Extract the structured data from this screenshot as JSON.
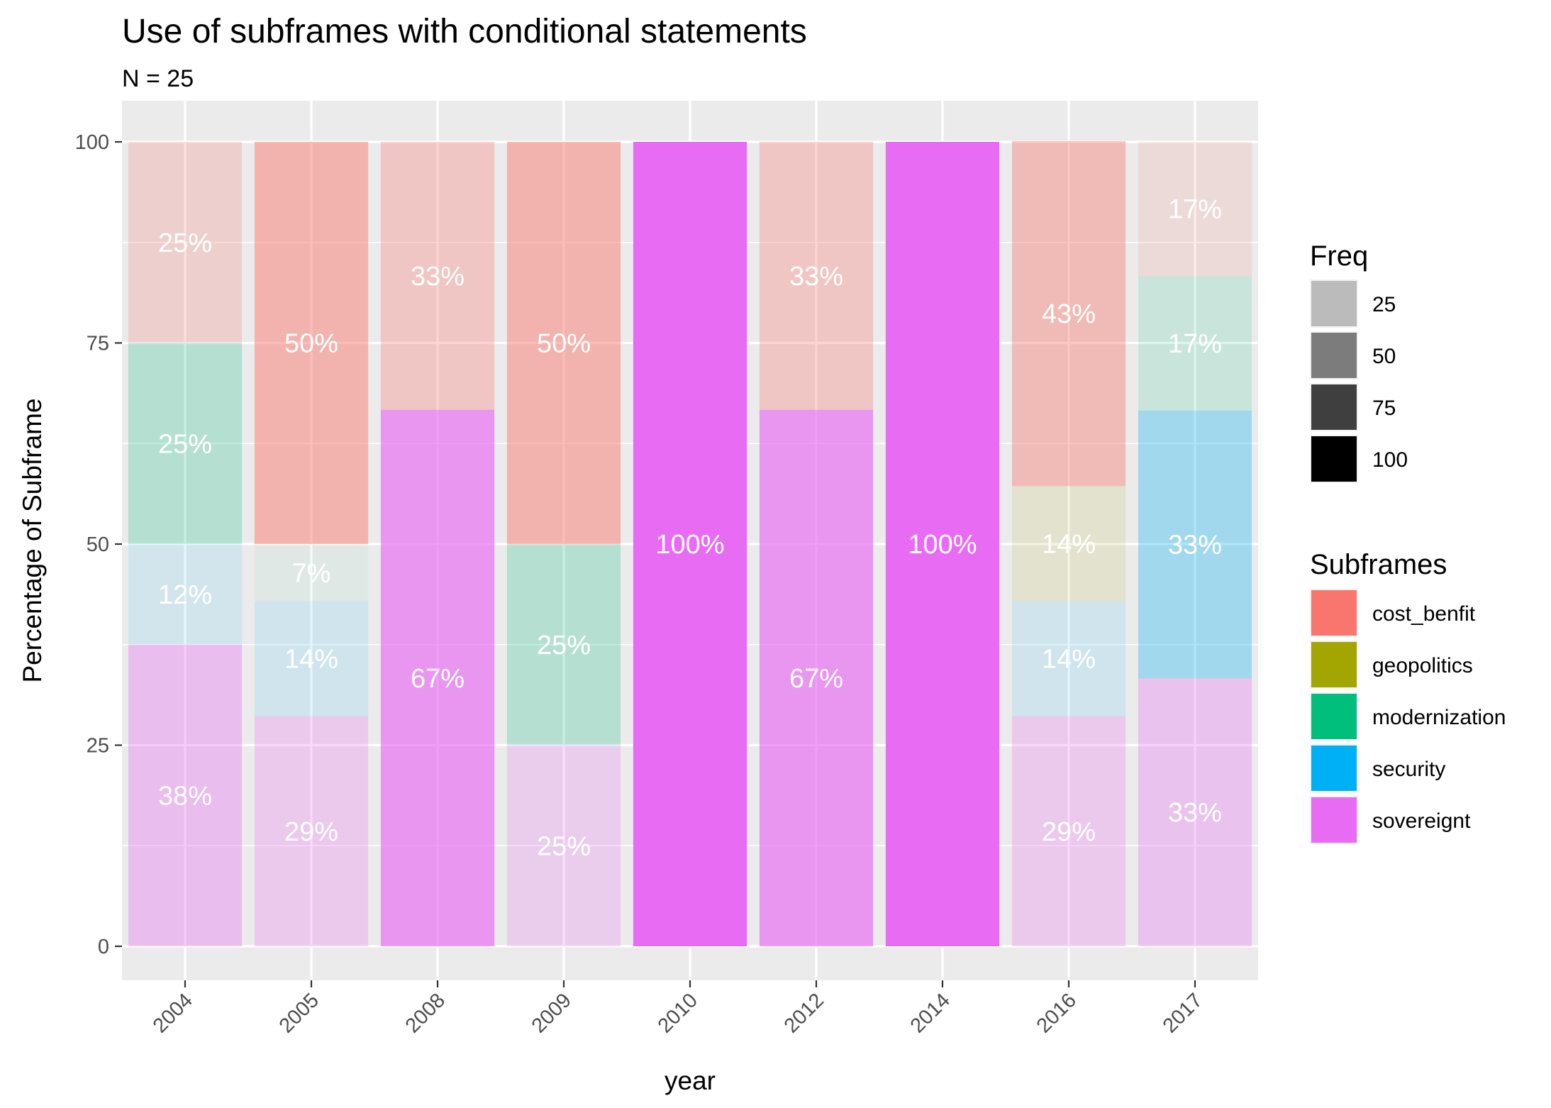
{
  "chart_data": {
    "type": "bar",
    "stacked": true,
    "title": "Use of subframes with conditional statements",
    "subtitle": "N = 25",
    "xlabel": "year",
    "ylabel": "Percentage of Subframe",
    "ylim": [
      0,
      100
    ],
    "yticks": [
      0,
      25,
      50,
      75,
      100
    ],
    "grid": true,
    "categories": [
      "2004",
      "2005",
      "2008",
      "2009",
      "2010",
      "2012",
      "2014",
      "2016",
      "2017"
    ],
    "series": [
      {
        "name": "sovereignt",
        "color": "#E76BF3",
        "values": [
          37.5,
          28.6,
          66.7,
          25,
          100,
          66.7,
          100,
          28.6,
          33.3
        ],
        "labels": [
          "38%",
          "29%",
          "67%",
          "25%",
          "100%",
          "67%",
          "100%",
          "29%",
          "33%"
        ],
        "freq": [
          37.5,
          28.6,
          66.7,
          25,
          100,
          66.7,
          100,
          28.6,
          33.3
        ]
      },
      {
        "name": "security",
        "color": "#00B0F6",
        "values": [
          12.5,
          14.3,
          0,
          0,
          0,
          0,
          0,
          14.3,
          33.3
        ],
        "labels": [
          "12%",
          "14%",
          "",
          "",
          "",
          "",
          "",
          "14%",
          "33%"
        ],
        "freq": [
          12.5,
          14.3,
          0,
          0,
          0,
          0,
          0,
          14.3,
          33.3
        ]
      },
      {
        "name": "geopolitics",
        "color": "#A3A500",
        "values": [
          0,
          0,
          0,
          0,
          0,
          0,
          0,
          14.3,
          0
        ],
        "labels": [
          "",
          "",
          "",
          "",
          "",
          "",
          "",
          "14%",
          ""
        ],
        "freq": [
          0,
          0,
          0,
          0,
          0,
          0,
          0,
          14.3,
          0
        ]
      },
      {
        "name": "modernization",
        "color": "#00BF7D",
        "values": [
          25,
          7.1,
          0,
          25,
          0,
          0,
          0,
          0,
          16.7
        ],
        "labels": [
          "25%",
          "7%",
          "",
          "25%",
          "",
          "",
          "",
          "",
          "17%"
        ],
        "freq": [
          25,
          7.1,
          0,
          25,
          0,
          0,
          0,
          0,
          16.7
        ]
      },
      {
        "name": "cost_benfit",
        "color": "#F8766D",
        "values": [
          25,
          50,
          33.3,
          50,
          0,
          33.3,
          0,
          42.9,
          16.7
        ],
        "labels": [
          "25%",
          "50%",
          "33%",
          "50%",
          "",
          "33%",
          "",
          "43%",
          "17%"
        ],
        "freq": [
          25,
          50,
          33.3,
          50,
          0,
          33.3,
          0,
          42.9,
          16.7
        ]
      }
    ],
    "legend": {
      "placement": "right",
      "freq_title": "Freq",
      "freq_items": [
        {
          "label": "25",
          "value": 25
        },
        {
          "label": "50",
          "value": 50
        },
        {
          "label": "75",
          "value": 75
        },
        {
          "label": "100",
          "value": 100
        }
      ],
      "subframes_title": "Subframes",
      "subframes_items": [
        {
          "label": "cost_benfit",
          "color": "#F8766D"
        },
        {
          "label": "geopolitics",
          "color": "#A3A500"
        },
        {
          "label": "modernization",
          "color": "#00BF7D"
        },
        {
          "label": "security",
          "color": "#00B0F6"
        },
        {
          "label": "sovereignt",
          "color": "#E76BF3"
        }
      ]
    }
  }
}
